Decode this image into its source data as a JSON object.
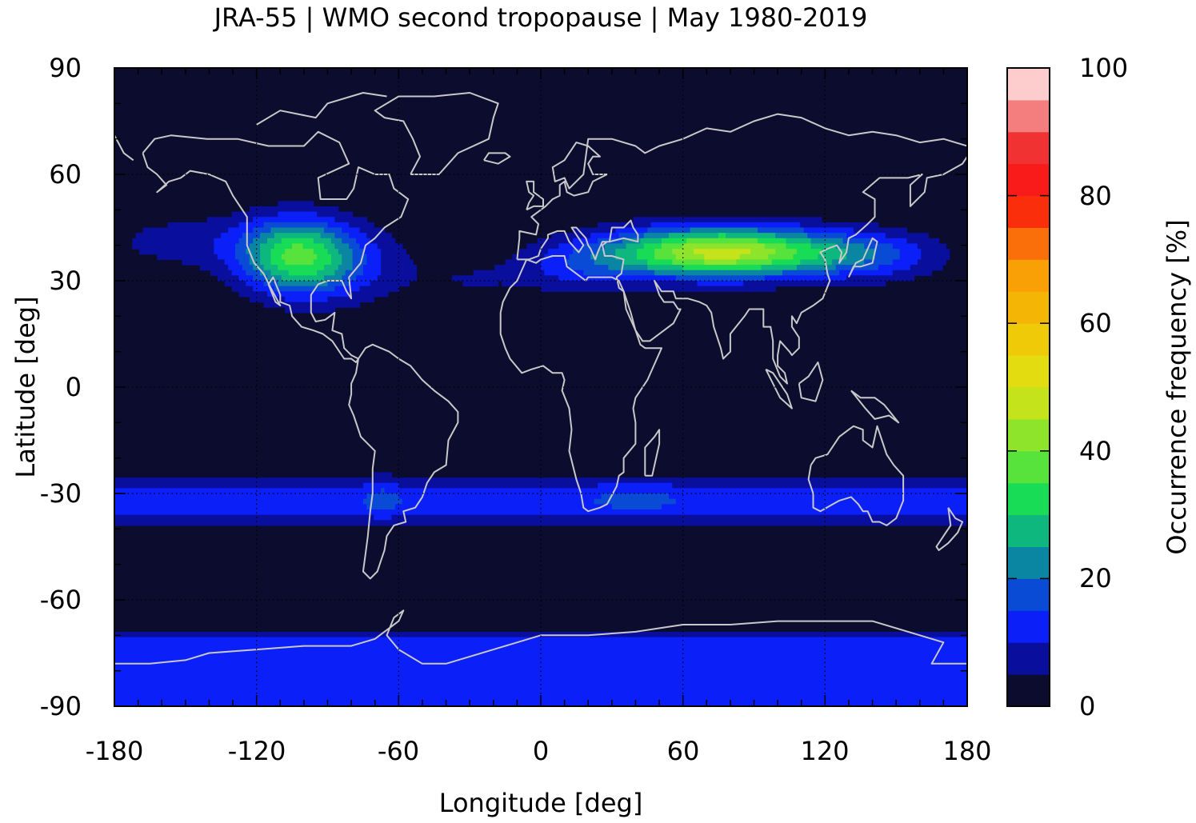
{
  "chart_data": {
    "type": "heatmap",
    "title": "JRA-55 | WMO second tropopause | May 1980-2019",
    "xlabel": "Longitude [deg]",
    "ylabel": "Latitude [deg]",
    "xlim": [
      -180,
      180
    ],
    "ylim": [
      -90,
      90
    ],
    "xticks": [
      -180,
      -120,
      -60,
      0,
      60,
      120,
      180
    ],
    "yticks": [
      90,
      60,
      30,
      0,
      -30,
      -60,
      -90
    ],
    "grid": true,
    "coastlines": true,
    "background_color": "#0b0c2e",
    "colorbar": {
      "label": "Occurrence frequency [%]",
      "range": [
        0,
        100
      ],
      "ticks": [
        0,
        20,
        40,
        60,
        80,
        100
      ],
      "levels": [
        {
          "from": 0,
          "to": 5,
          "color": "#0b0c2e"
        },
        {
          "from": 5,
          "to": 10,
          "color": "#0a0e9c"
        },
        {
          "from": 10,
          "to": 15,
          "color": "#0b20f8"
        },
        {
          "from": 15,
          "to": 20,
          "color": "#0a4bd6"
        },
        {
          "from": 20,
          "to": 25,
          "color": "#0a86a2"
        },
        {
          "from": 25,
          "to": 30,
          "color": "#0eb77e"
        },
        {
          "from": 30,
          "to": 35,
          "color": "#19dc56"
        },
        {
          "from": 35,
          "to": 40,
          "color": "#58e33c"
        },
        {
          "from": 40,
          "to": 45,
          "color": "#8ee42a"
        },
        {
          "from": 45,
          "to": 50,
          "color": "#c4e31a"
        },
        {
          "from": 50,
          "to": 55,
          "color": "#e2dc10"
        },
        {
          "from": 55,
          "to": 60,
          "color": "#efca08"
        },
        {
          "from": 60,
          "to": 65,
          "color": "#f4b505"
        },
        {
          "from": 65,
          "to": 70,
          "color": "#f8a006"
        },
        {
          "from": 70,
          "to": 75,
          "color": "#fb6f0a"
        },
        {
          "from": 75,
          "to": 80,
          "color": "#fb2e0c"
        },
        {
          "from": 80,
          "to": 85,
          "color": "#f91a1a"
        },
        {
          "from": 85,
          "to": 90,
          "color": "#f03232"
        },
        {
          "from": 90,
          "to": 95,
          "color": "#f47e7e"
        },
        {
          "from": 95,
          "to": 100,
          "color": "#fdcccc"
        }
      ]
    },
    "regions": [
      {
        "name": "SH subtropical band",
        "lon": [
          -180,
          180
        ],
        "lat": [
          -43,
          -23
        ],
        "value_range": [
          5,
          25
        ]
      },
      {
        "name": "Antarctic band",
        "lon": [
          -180,
          180
        ],
        "lat": [
          -90,
          -71
        ],
        "value_range": [
          5,
          15
        ]
      },
      {
        "name": "North America",
        "lon": [
          -160,
          -55
        ],
        "lat": [
          24,
          53
        ],
        "peak_lon": -103,
        "peak_lat": 35,
        "peak_value": 32
      },
      {
        "name": "Central Pacific",
        "lon": [
          -180,
          -130
        ],
        "lat": [
          30,
          50
        ],
        "value_range": [
          5,
          10
        ]
      },
      {
        "name": "Eurasia / Tibet",
        "lon": [
          -15,
          170
        ],
        "lat": [
          26,
          47
        ],
        "peak_lon": 78,
        "peak_lat": 38,
        "peak_value": 50
      }
    ]
  }
}
